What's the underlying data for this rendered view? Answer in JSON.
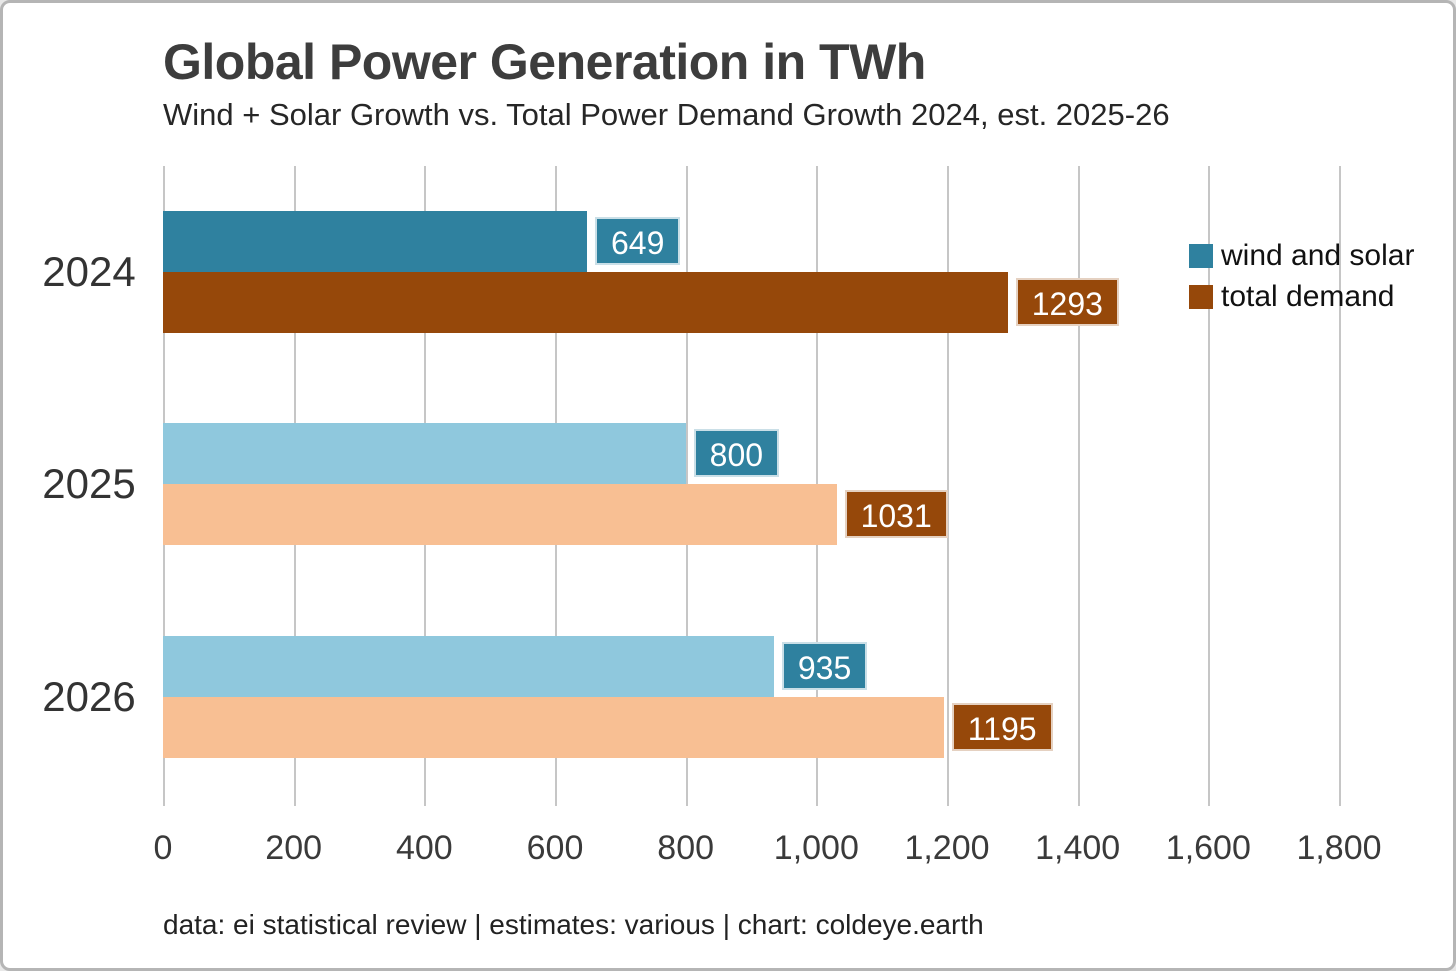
{
  "header": {
    "title": "Global Power Generation in TWh",
    "subtitle": "Wind + Solar Growth vs. Total Power Demand Growth 2024, est. 2025-26"
  },
  "legend": {
    "items": [
      {
        "label": "wind and solar",
        "color": "#2f819f"
      },
      {
        "label": "total demand",
        "color": "#96480a"
      }
    ]
  },
  "footer": {
    "text": "data: ei statistical review | estimates: various | chart: coldeye.earth"
  },
  "chart_data": {
    "type": "bar",
    "orientation": "horizontal",
    "title": "Global Power Generation in TWh",
    "subtitle": "Wind + Solar Growth vs. Total Power Demand Growth 2024, est. 2025-26",
    "categories": [
      "2024",
      "2025",
      "2026"
    ],
    "series": [
      {
        "name": "wind and solar",
        "values": [
          649,
          800,
          935
        ],
        "bar_colors": [
          "#2f819f",
          "#8fc8dd",
          "#8fc8dd"
        ],
        "label_bg": "#2f819f"
      },
      {
        "name": "total demand",
        "values": [
          1293,
          1031,
          1195
        ],
        "bar_colors": [
          "#96480a",
          "#f8bf93",
          "#f8bf93"
        ],
        "label_bg": "#96480a"
      }
    ],
    "xlim": [
      0,
      1800
    ],
    "xtick_values": [
      0,
      200,
      400,
      600,
      800,
      1000,
      1200,
      1400,
      1600,
      1800
    ],
    "xtick_labels": [
      "0",
      "200",
      "400",
      "600",
      "800",
      "1,000",
      "1,200",
      "1,400",
      "1,600",
      "1,800"
    ],
    "grid": "vertical",
    "legend_position": "right-top",
    "gridline_color": "#c6c6c6",
    "value_label_text_color": "#ffffff"
  }
}
